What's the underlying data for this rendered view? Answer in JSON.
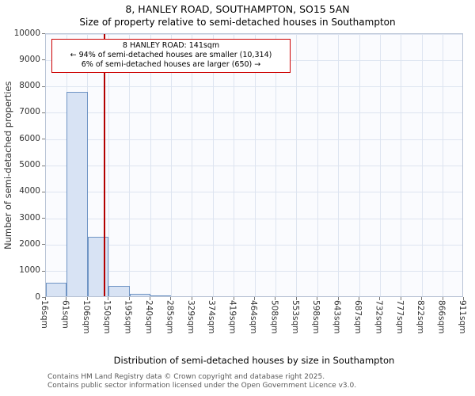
{
  "chart_data": {
    "type": "bar",
    "title": "8, HANLEY ROAD, SOUTHAMPTON, SO15 5AN",
    "subtitle": "Size of property relative to semi-detached houses in Southampton",
    "xlabel": "Distribution of semi-detached houses by size in Southampton",
    "ylabel": "Number of semi-detached properties",
    "x_tick_labels": [
      "16sqm",
      "61sqm",
      "106sqm",
      "150sqm",
      "195sqm",
      "240sqm",
      "285sqm",
      "329sqm",
      "374sqm",
      "419sqm",
      "464sqm",
      "508sqm",
      "553sqm",
      "598sqm",
      "643sqm",
      "687sqm",
      "732sqm",
      "777sqm",
      "822sqm",
      "866sqm",
      "911sqm"
    ],
    "x_range_sqm": [
      16,
      911
    ],
    "bin_width_sqm": 44.75,
    "values": [
      500,
      7750,
      2250,
      400,
      80,
      30,
      0,
      0,
      0,
      0,
      0,
      0,
      0,
      0,
      0,
      0,
      0,
      0,
      0,
      0
    ],
    "ylim": [
      0,
      10000
    ],
    "y_ticks": [
      0,
      1000,
      2000,
      3000,
      4000,
      5000,
      6000,
      7000,
      8000,
      9000,
      10000
    ],
    "grid": true,
    "legend": "none",
    "marker": {
      "value_sqm": 141,
      "color": "#b30000"
    },
    "colors": {
      "bar_fill": "#d8e3f4",
      "bar_border": "#6f94c4",
      "grid": "#dde4f0",
      "plot_bg": "#fafbfe",
      "plot_border": "#b9c4d6",
      "annotation_border": "#cc0000"
    }
  },
  "annotation": {
    "line1": "8 HANLEY ROAD: 141sqm",
    "line2": "← 94% of semi-detached houses are smaller (10,314)",
    "line3": "6% of semi-detached houses are larger (650) →"
  },
  "footer": {
    "line1": "Contains HM Land Registry data © Crown copyright and database right 2025.",
    "line2": "Contains public sector information licensed under the Open Government Licence v3.0."
  }
}
